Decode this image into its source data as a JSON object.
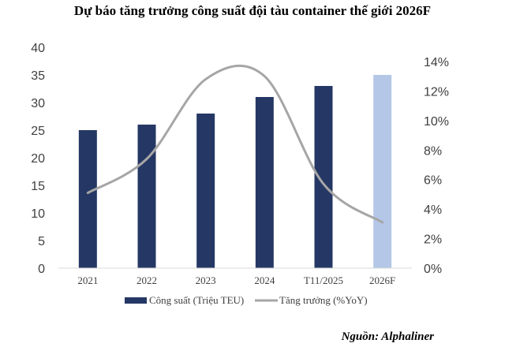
{
  "chart_data": {
    "type": "bar+line",
    "title": "Dự báo tăng trưởng công suất đội tàu container thế giới 2026F",
    "categories": [
      "2021",
      "2022",
      "2023",
      "2024",
      "T11/2025",
      "2026F"
    ],
    "series": [
      {
        "name": "Công suất  (Triệu TEU)",
        "type": "bar",
        "axis": "left",
        "values": [
          25,
          26,
          28,
          31,
          33,
          35
        ],
        "colors": [
          "#253764",
          "#253764",
          "#253764",
          "#253764",
          "#253764",
          "#b4c7e7"
        ]
      },
      {
        "name": "Tăng trưởng (%YoY)",
        "type": "line",
        "axis": "right",
        "values": [
          5.1,
          7.4,
          12.8,
          13.0,
          5.7,
          3.1
        ],
        "color": "#a6a6a6"
      }
    ],
    "ylim_left": [
      0,
      40
    ],
    "yticks_left": [
      "0",
      "5",
      "10",
      "15",
      "20",
      "25",
      "30",
      "35",
      "40"
    ],
    "ylim_right": [
      0,
      14
    ],
    "yticks_right": [
      "0%",
      "2%",
      "4%",
      "6%",
      "8%",
      "10%",
      "12%",
      "14%"
    ],
    "legend": "bottom",
    "grid": false
  },
  "source": "Nguồn: Alphaliner"
}
